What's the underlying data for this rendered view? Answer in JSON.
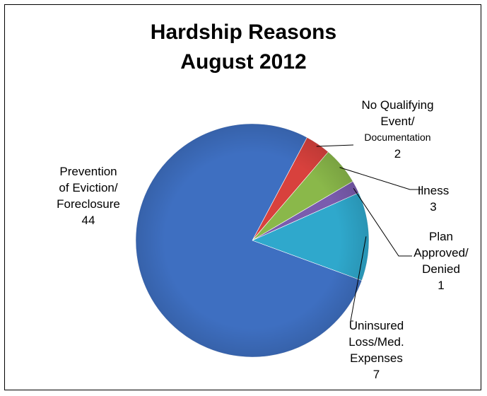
{
  "chart_data": {
    "type": "pie",
    "title_lines": [
      "Hardship Reasons",
      "August 2012"
    ],
    "slices": [
      {
        "label_lines": [
          "Prevention",
          "of Eviction/",
          "Foreclosure"
        ],
        "value": 44,
        "color": "#3E6FC1"
      },
      {
        "label_lines": [
          "No Qualifying",
          "Event/",
          "Documentation"
        ],
        "value": 2,
        "color": "#D8413D"
      },
      {
        "label_lines": [
          "Ilness"
        ],
        "value": 3,
        "color": "#8AB84A"
      },
      {
        "label_lines": [
          "Plan",
          "Approved/",
          "Denied"
        ],
        "value": 1,
        "color": "#7A5CAE"
      },
      {
        "label_lines": [
          "Uninsured",
          "Loss/Med.",
          "Expenses"
        ],
        "value": 7,
        "color": "#2FA8CC"
      }
    ]
  }
}
